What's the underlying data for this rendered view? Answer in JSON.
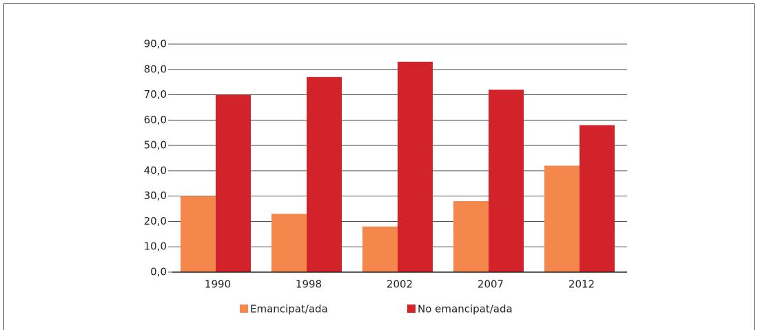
{
  "chart_data": {
    "type": "bar",
    "categories": [
      "1990",
      "1998",
      "2002",
      "2007",
      "2012"
    ],
    "series": [
      {
        "name": "Emancipat/ada",
        "color": "#f4874b",
        "values": [
          30,
          23,
          18,
          28,
          42
        ]
      },
      {
        "name": "No emancipat/ada",
        "color": "#d2232a",
        "values": [
          70,
          77,
          83,
          72,
          58
        ]
      }
    ],
    "ylim": [
      0,
      90
    ],
    "yticks": [
      {
        "value": 0,
        "label": "0,0"
      },
      {
        "value": 10,
        "label": "10,0"
      },
      {
        "value": 20,
        "label": "20,0"
      },
      {
        "value": 30,
        "label": "30,0"
      },
      {
        "value": 40,
        "label": "40,0"
      },
      {
        "value": 50,
        "label": "50,0"
      },
      {
        "value": 60,
        "label": "60,0"
      },
      {
        "value": 70,
        "label": "70,0"
      },
      {
        "value": 80,
        "label": "80,0"
      },
      {
        "value": 90,
        "label": "90,0"
      }
    ],
    "grid": true,
    "legend": "bottom"
  }
}
